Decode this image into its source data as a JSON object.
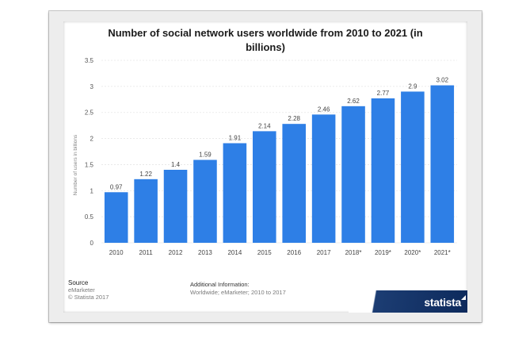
{
  "chart_data": {
    "type": "bar",
    "title": "Number of social network users worldwide from 2010 to 2021 (in billions)",
    "xlabel": "",
    "ylabel": "Number of users in billions",
    "categories": [
      "2010",
      "2011",
      "2012",
      "2013",
      "2014",
      "2015",
      "2016",
      "2017",
      "2018*",
      "2019*",
      "2020*",
      "2021*"
    ],
    "values": [
      0.97,
      1.22,
      1.4,
      1.59,
      1.91,
      2.14,
      2.28,
      2.46,
      2.62,
      2.77,
      2.9,
      3.02
    ],
    "value_labels": [
      "0.97",
      "1.22",
      "1.4",
      "1.59",
      "1.91",
      "2.14",
      "2.28",
      "2.46",
      "2.62",
      "2.77",
      "2.9",
      "3.02"
    ],
    "ylim": [
      0,
      3.5
    ],
    "yticks": [
      "0",
      "0.5",
      "1",
      "1.5",
      "2",
      "2.5",
      "3",
      "3.5"
    ],
    "grid": true,
    "bar_color": "#2e7fe6"
  },
  "footer": {
    "source_heading": "Source",
    "source_name": "eMarketer",
    "copyright": "© Statista 2017",
    "info_heading": "Additional Information:",
    "info_text": "Worldwide; eMarketer; 2010 to 2017"
  },
  "brand": {
    "name": "statista",
    "bg_color": "#0d2a5c"
  }
}
